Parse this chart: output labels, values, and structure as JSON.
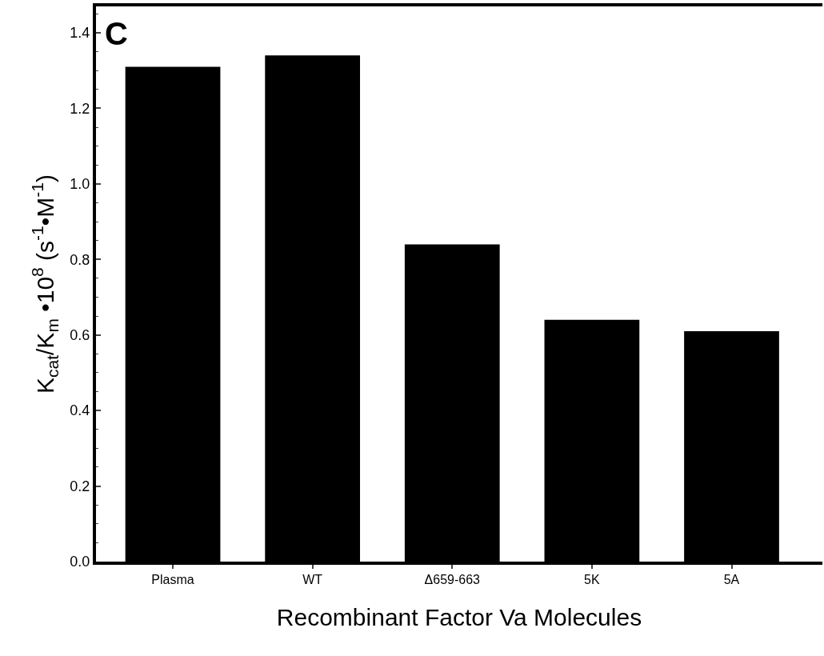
{
  "chart_data": {
    "type": "bar",
    "categories": [
      "Plasma",
      "WT",
      "Δ659-663",
      "5K",
      "5A"
    ],
    "values": [
      1.31,
      1.34,
      0.84,
      0.64,
      0.61
    ],
    "color": "#000000",
    "xlabel": "Recombinant Factor Va Molecules",
    "ylabel": "K$_{cat}$/K$_{m}$ •10$^{8}$ (s$^{-1}$•M$^{-1}$)",
    "annotations": [
      "C"
    ],
    "ylim": [
      0,
      1.47
    ],
    "yticks": [
      {
        "value": 0,
        "label": "0.0"
      },
      0.2,
      0.4,
      0.6,
      0.8,
      {
        "value": 1,
        "label": "1.0"
      },
      1.2,
      1.4
    ]
  }
}
